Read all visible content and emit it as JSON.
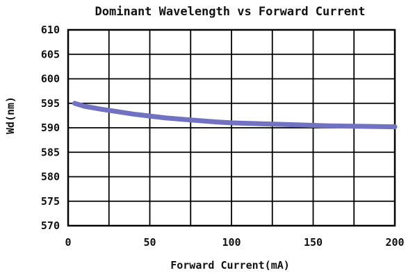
{
  "chart_data": {
    "type": "line",
    "title": "Dominant Wavelength vs Forward Current",
    "xlabel": "Forward Current(mA)",
    "ylabel": "Wd(nm)",
    "xlim": [
      0,
      200
    ],
    "ylim": [
      570,
      610
    ],
    "xticks": [
      0,
      50,
      100,
      150,
      200
    ],
    "yticks": [
      570,
      575,
      580,
      585,
      590,
      595,
      600,
      605,
      610
    ],
    "x_gridlines": [
      0,
      25,
      50,
      75,
      100,
      125,
      150,
      175,
      200
    ],
    "y_gridlines": [
      570,
      575,
      580,
      585,
      590,
      595,
      600,
      605,
      610
    ],
    "grid": true,
    "series": [
      {
        "color": "#7272c2",
        "x": [
          4,
          10,
          20,
          30,
          40,
          50,
          60,
          75,
          90,
          100,
          120,
          140,
          160,
          180,
          200
        ],
        "y": [
          595.0,
          594.4,
          593.8,
          593.3,
          592.8,
          592.4,
          592.0,
          591.6,
          591.2,
          591.0,
          590.8,
          590.6,
          590.4,
          590.3,
          590.2
        ]
      }
    ]
  }
}
